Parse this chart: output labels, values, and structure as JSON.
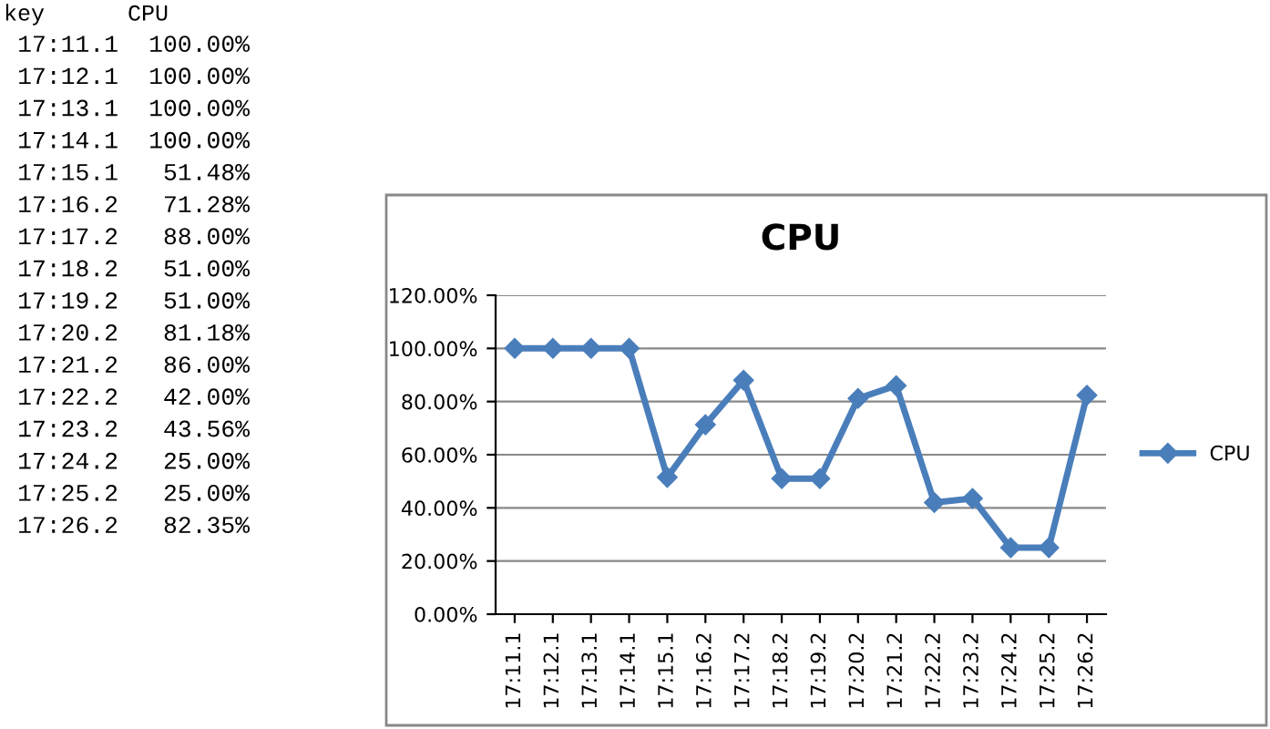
{
  "chart_data": {
    "type": "line",
    "title": "CPU",
    "categories": [
      "17:11.1",
      "17:12.1",
      "17:13.1",
      "17:14.1",
      "17:15.1",
      "17:16.2",
      "17:17.2",
      "17:18.2",
      "17:19.2",
      "17:20.2",
      "17:21.2",
      "17:22.2",
      "17:23.2",
      "17:24.2",
      "17:25.2",
      "17:26.2"
    ],
    "series": [
      {
        "name": "CPU",
        "color": "#4a7ebb",
        "values": [
          100,
          100,
          100,
          100,
          51.48,
          71.28,
          88,
          51,
          51,
          81.18,
          86,
          42,
          43.56,
          25,
          25,
          82.35
        ]
      }
    ],
    "annotations": [
      "key",
      "CPU",
      "17:11.1",
      "100.00%",
      "17:12.1",
      "100.00%",
      "17:13.1",
      "100.00%",
      "17:14.1",
      "100.00%",
      "17:15.1",
      "51.48%",
      "17:16.2",
      "71.28%",
      "17:17.2",
      "88.00%",
      "17:18.2",
      "51.00%",
      "17:19.2",
      "51.00%",
      "17:20.2",
      "81.18%",
      "17:21.2",
      "86.00%",
      "17:22.2",
      "42.00%",
      "17:23.2",
      "43.56%",
      "17:24.2",
      "25.00%",
      "17:25.2",
      "25.00%",
      "17:26.2",
      "82.35%"
    ],
    "ylim": [
      0,
      120
    ],
    "yticks": [
      {
        "value": 0,
        "label": "0.00%"
      },
      {
        "value": 20,
        "label": "20.00%"
      },
      {
        "value": 40,
        "label": "40.00%"
      },
      {
        "value": 60,
        "label": "60.00%"
      },
      {
        "value": 80,
        "label": "80.00%"
      },
      {
        "value": 100,
        "label": "100.00%"
      },
      {
        "value": 120,
        "label": "120.00%"
      }
    ],
    "grid": "y",
    "legend": "right",
    "marker": "diamond",
    "line_style": "solid"
  }
}
